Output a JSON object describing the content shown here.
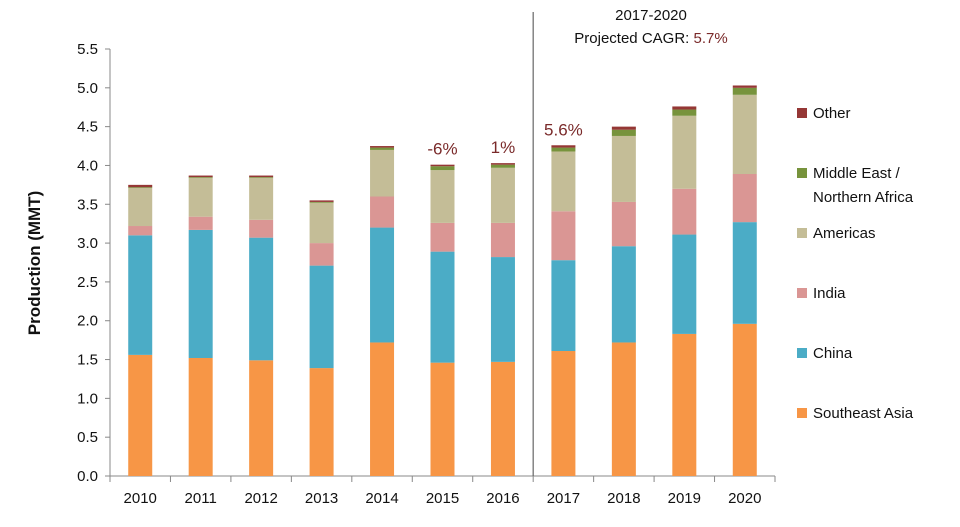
{
  "chart_data": {
    "type": "bar",
    "stacked": true,
    "title": "",
    "xlabel": "",
    "ylabel": "Production (MMT)",
    "ylim": [
      0,
      5.5
    ],
    "yticks": [
      "0.0",
      "0.5",
      "1.0",
      "1.5",
      "2.0",
      "2.5",
      "3.0",
      "3.5",
      "4.0",
      "4.5",
      "5.0",
      "5.5"
    ],
    "grid": false,
    "legend_position": "right",
    "categories": [
      "2010",
      "2011",
      "2012",
      "2013",
      "2014",
      "2015",
      "2016",
      "2017",
      "2018",
      "2019",
      "2020"
    ],
    "series": [
      {
        "name": "Southeast Asia",
        "color": "#f79646",
        "values": [
          1.56,
          1.52,
          1.49,
          1.39,
          1.72,
          1.46,
          1.47,
          1.61,
          1.72,
          1.83,
          1.96
        ]
      },
      {
        "name": "China",
        "color": "#4bacc6",
        "values": [
          1.54,
          1.65,
          1.58,
          1.32,
          1.48,
          1.43,
          1.35,
          1.17,
          1.24,
          1.28,
          1.31
        ]
      },
      {
        "name": "India",
        "color": "#da9694",
        "values": [
          0.12,
          0.17,
          0.23,
          0.29,
          0.4,
          0.37,
          0.44,
          0.63,
          0.57,
          0.59,
          0.62
        ]
      },
      {
        "name": "Americas",
        "color": "#c4bd97",
        "values": [
          0.49,
          0.5,
          0.54,
          0.52,
          0.6,
          0.68,
          0.71,
          0.77,
          0.85,
          0.94,
          1.02
        ]
      },
      {
        "name": "Middle East / Northern Africa",
        "color": "#77933c",
        "values": [
          0.01,
          0.01,
          0.01,
          0.01,
          0.03,
          0.05,
          0.04,
          0.05,
          0.08,
          0.08,
          0.09
        ]
      },
      {
        "name": "Other",
        "color": "#953735",
        "values": [
          0.03,
          0.02,
          0.02,
          0.02,
          0.02,
          0.02,
          0.02,
          0.03,
          0.04,
          0.04,
          0.03
        ]
      }
    ],
    "legend_order": [
      "Other",
      "Middle East / Northern Africa",
      "Americas",
      "India",
      "China",
      "Southeast Asia"
    ],
    "legend_labels": {
      "Other": [
        "Other"
      ],
      "Middle East / Northern Africa": [
        "Middle East /",
        "Northern Africa"
      ],
      "Americas": [
        "Americas"
      ],
      "India": [
        "India"
      ],
      "China": [
        "China"
      ],
      "Southeast Asia": [
        "Southeast Asia"
      ]
    },
    "annotations": [
      {
        "category": "2015",
        "text": "-6%"
      },
      {
        "category": "2016",
        "text": "1%"
      },
      {
        "category": "2017",
        "text": "5.6%"
      }
    ],
    "divider_after": "2016",
    "projection_note": {
      "line1": "2017-2020",
      "line2_prefix": "Projected CAGR: ",
      "line2_value": "5.7%"
    }
  }
}
